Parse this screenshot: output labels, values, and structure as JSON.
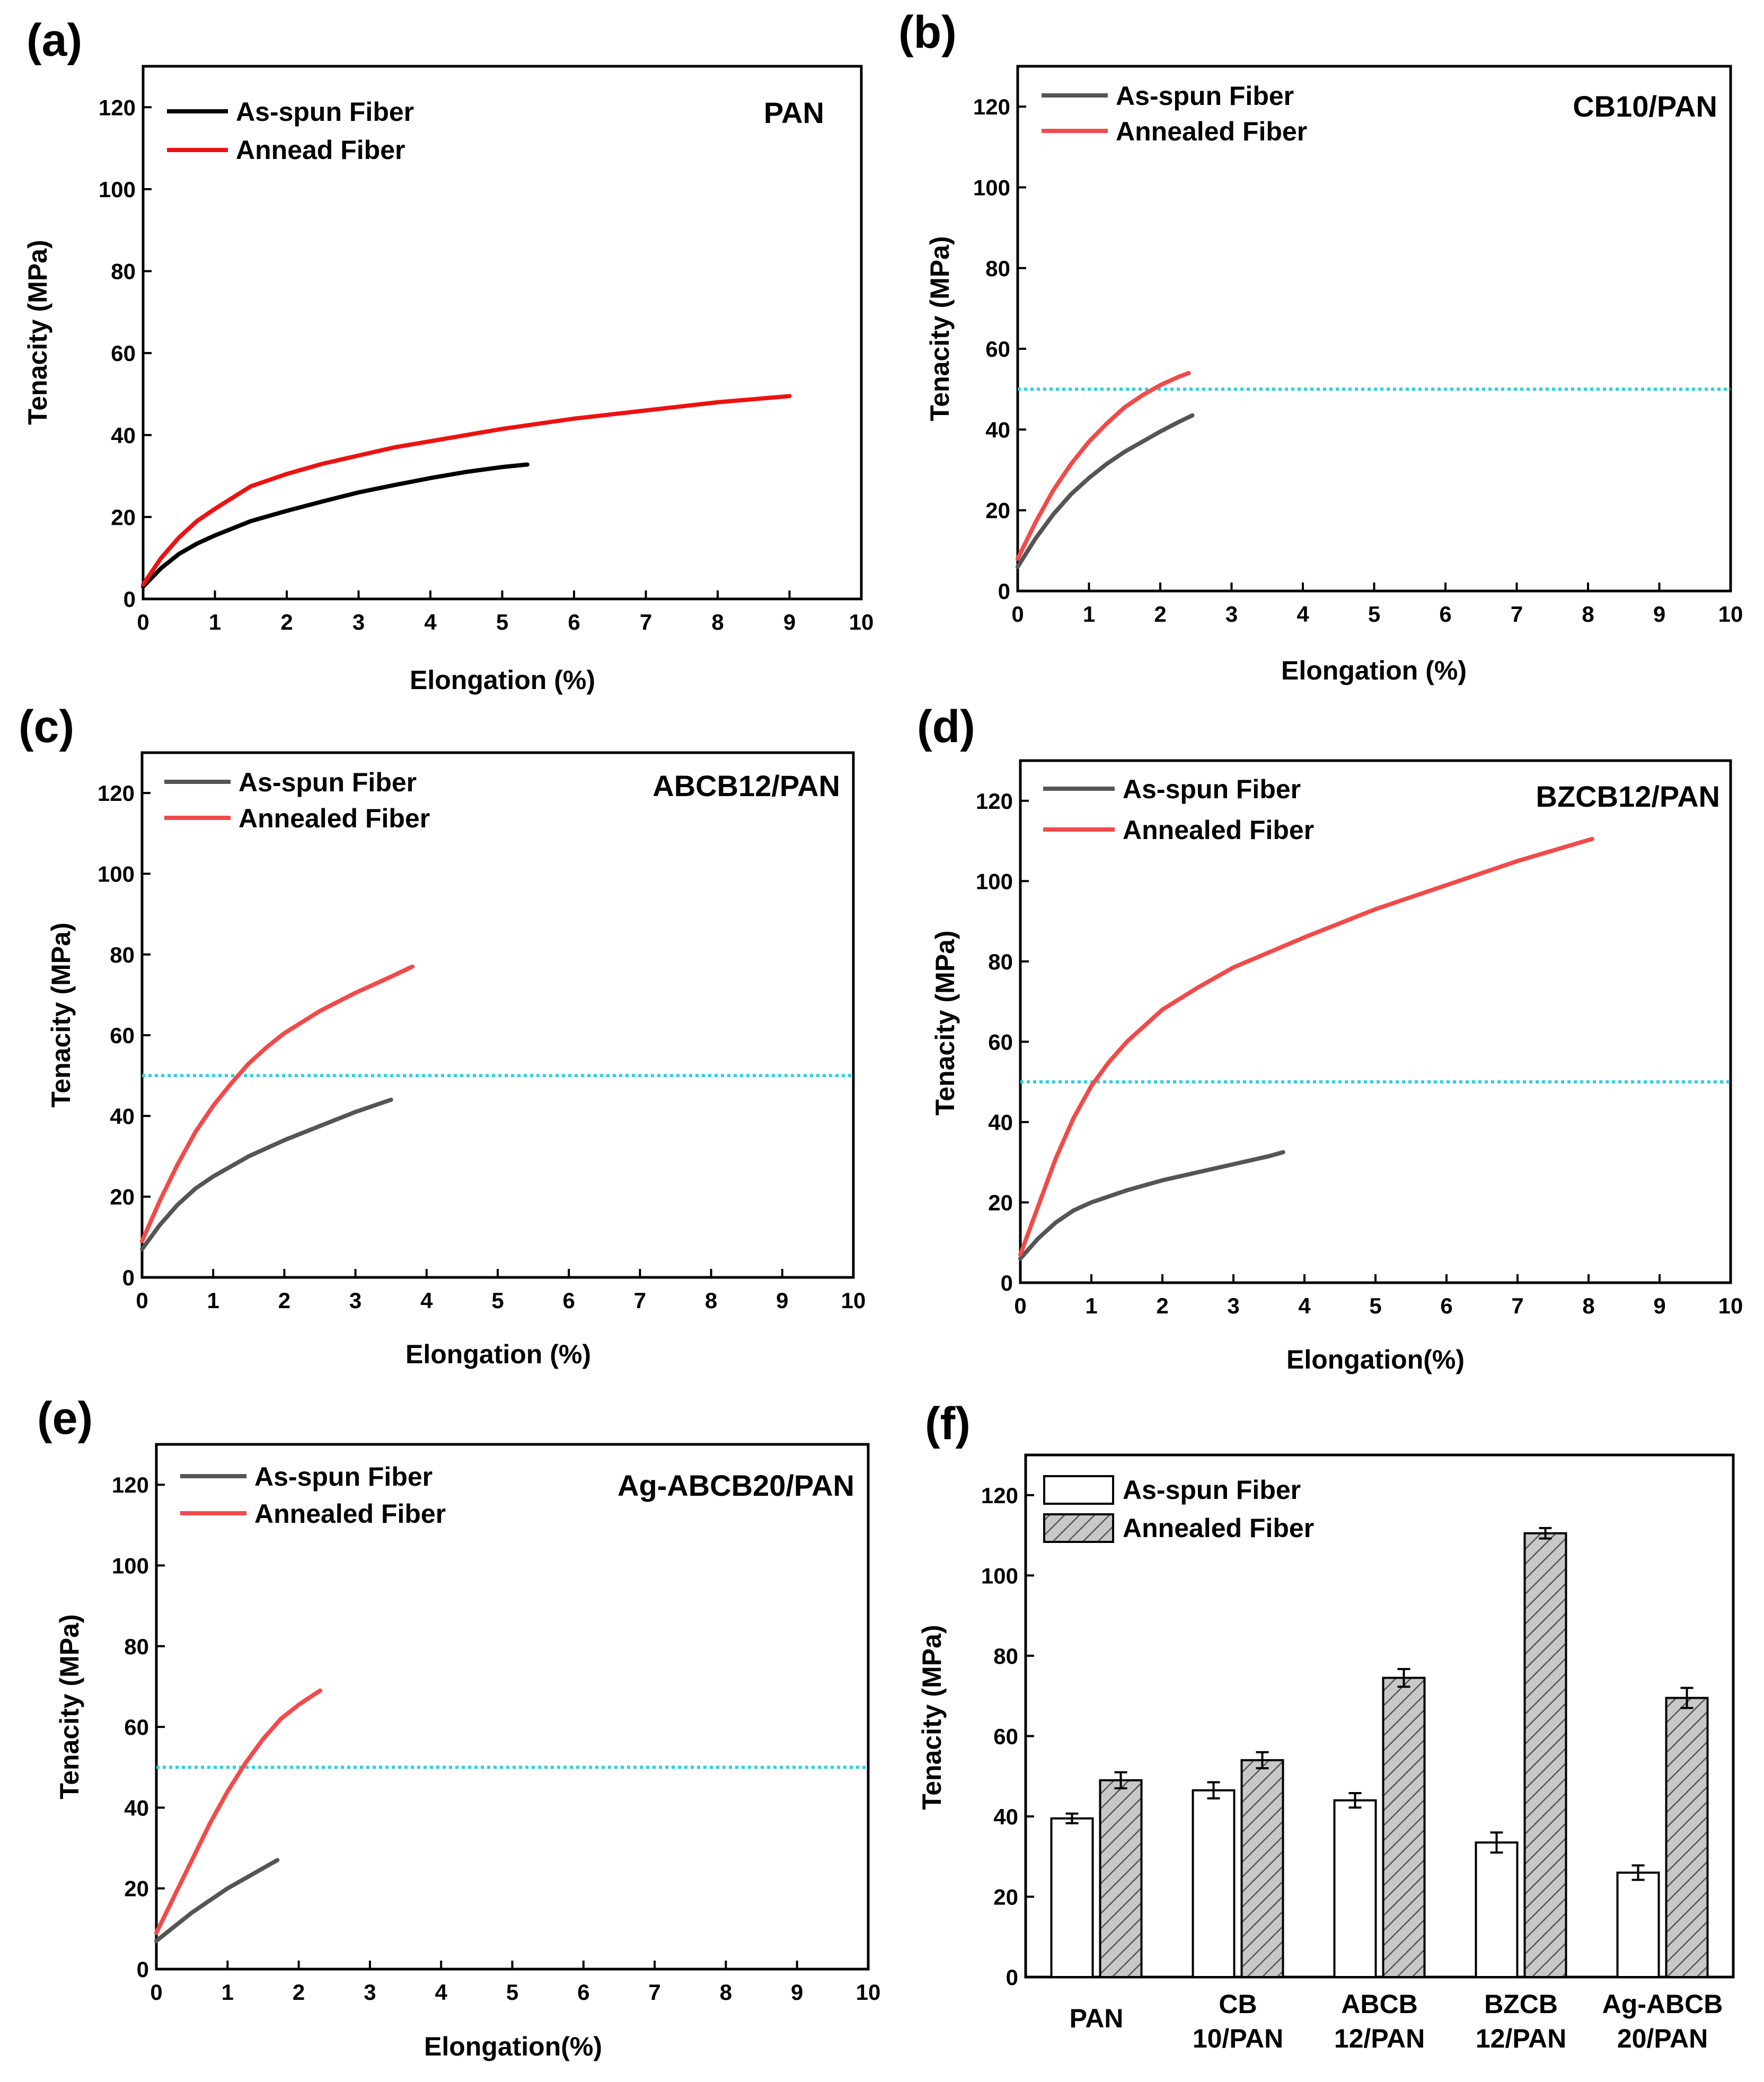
{
  "colors": {
    "as_spun_black": "#000000",
    "as_spun_gray": "#555555",
    "annealed_red_dark": "#ee1111",
    "annealed_red": "#f24a4a",
    "reference_line": "#2ed0df",
    "bar_hatch_fill": "#c8c8c8"
  },
  "chart_data": [
    {
      "id": "a",
      "panel_label": "(a)",
      "type": "line",
      "title": "PAN",
      "xlabel": "Elongation (%)",
      "ylabel": "Tenacity (MPa)",
      "xlim": [
        0,
        10
      ],
      "ylim": [
        0,
        130
      ],
      "xticks": [
        "0",
        "1",
        "2",
        "3",
        "4",
        "5",
        "6",
        "7",
        "8",
        "9",
        "10"
      ],
      "yticks": [
        "0",
        "20",
        "40",
        "60",
        "80",
        "100",
        "120"
      ],
      "reference_line": null,
      "series": [
        {
          "name": "As-spun Fiber",
          "color": "#000000",
          "x": [
            0,
            0.25,
            0.5,
            0.75,
            1,
            1.5,
            2,
            2.5,
            3,
            3.5,
            4,
            4.5,
            5,
            5.35
          ],
          "y": [
            3,
            7.5,
            11,
            13.5,
            15.5,
            19,
            21.5,
            23.8,
            26,
            27.8,
            29.5,
            31,
            32.2,
            32.8
          ]
        },
        {
          "name": "Annead Fiber",
          "color": "#ee1111",
          "x": [
            0,
            0.25,
            0.5,
            0.75,
            1,
            1.5,
            2,
            2.5,
            3,
            3.5,
            4,
            5,
            6,
            7,
            8,
            9
          ],
          "y": [
            3.5,
            10,
            15,
            19,
            22,
            27.5,
            30.5,
            33,
            35,
            37,
            38.5,
            41.5,
            44,
            46,
            48,
            49.5
          ]
        }
      ]
    },
    {
      "id": "b",
      "panel_label": "(b)",
      "type": "line",
      "title": "CB10/PAN",
      "xlabel": "Elongation (%)",
      "ylabel": "Tenacity (MPa)",
      "xlim": [
        0,
        10
      ],
      "ylim": [
        0,
        130
      ],
      "xticks": [
        "0",
        "1",
        "2",
        "3",
        "4",
        "5",
        "6",
        "7",
        "8",
        "9",
        "10"
      ],
      "yticks": [
        "0",
        "20",
        "40",
        "60",
        "80",
        "100",
        "120"
      ],
      "reference_line": 50,
      "series": [
        {
          "name": "As-spun Fiber",
          "color": "#555555",
          "x": [
            0,
            0.25,
            0.5,
            0.75,
            1,
            1.25,
            1.5,
            1.75,
            2,
            2.25,
            2.45
          ],
          "y": [
            6,
            13,
            19,
            24,
            28,
            31.5,
            34.5,
            37,
            39.5,
            41.8,
            43.5
          ]
        },
        {
          "name": "Annealed Fiber",
          "color": "#f24a4a",
          "x": [
            0,
            0.25,
            0.5,
            0.75,
            1,
            1.25,
            1.5,
            1.75,
            2,
            2.25,
            2.4
          ],
          "y": [
            8,
            17,
            25,
            31.5,
            37,
            41.5,
            45.5,
            48.5,
            51,
            53,
            54
          ]
        }
      ]
    },
    {
      "id": "c",
      "panel_label": "(c)",
      "type": "line",
      "title": "ABCB12/PAN",
      "xlabel": "Elongation (%)",
      "ylabel": "Tenacity (MPa)",
      "xlim": [
        0,
        10
      ],
      "ylim": [
        0,
        130
      ],
      "xticks": [
        "0",
        "1",
        "2",
        "3",
        "4",
        "5",
        "6",
        "7",
        "8",
        "9",
        "10"
      ],
      "yticks": [
        "0",
        "20",
        "40",
        "60",
        "80",
        "100",
        "120"
      ],
      "reference_line": 50,
      "series": [
        {
          "name": "As-spun Fiber",
          "color": "#555555",
          "x": [
            0,
            0.25,
            0.5,
            0.75,
            1,
            1.5,
            2,
            2.5,
            3,
            3.5
          ],
          "y": [
            7,
            13,
            18,
            22,
            25,
            30,
            34,
            37.5,
            41,
            44
          ]
        },
        {
          "name": "Annealed Fiber",
          "color": "#f24a4a",
          "x": [
            0,
            0.25,
            0.5,
            0.75,
            1,
            1.25,
            1.5,
            1.75,
            2,
            2.5,
            3,
            3.5,
            3.8
          ],
          "y": [
            9,
            19,
            28,
            36,
            42.5,
            48,
            53,
            57,
            60.5,
            66,
            70.5,
            74.5,
            77
          ]
        }
      ]
    },
    {
      "id": "d",
      "panel_label": "(d)",
      "type": "line",
      "title": "BZCB12/PAN",
      "xlabel": "Elongation(%)",
      "ylabel": "Tenacity (MPa)",
      "xlim": [
        0,
        10
      ],
      "ylim": [
        0,
        130
      ],
      "xticks": [
        "0",
        "1",
        "2",
        "3",
        "4",
        "5",
        "6",
        "7",
        "8",
        "9",
        "10"
      ],
      "yticks": [
        "0",
        "20",
        "40",
        "60",
        "80",
        "100",
        "120"
      ],
      "reference_line": 50,
      "series": [
        {
          "name": "As-spun Fiber",
          "color": "#555555",
          "x": [
            0,
            0.25,
            0.5,
            0.75,
            1,
            1.5,
            2,
            2.5,
            3,
            3.5,
            3.7
          ],
          "y": [
            6,
            11,
            15,
            18,
            20,
            23,
            25.5,
            27.5,
            29.5,
            31.5,
            32.5
          ]
        },
        {
          "name": "Annealed Fiber",
          "color": "#f24a4a",
          "x": [
            0,
            0.25,
            0.5,
            0.75,
            1,
            1.25,
            1.5,
            2,
            2.5,
            3,
            4,
            5,
            6,
            7,
            8.05
          ],
          "y": [
            7,
            19,
            31,
            41,
            49,
            55,
            60,
            68,
            73.5,
            78.5,
            86,
            93,
            99,
            105,
            110.5
          ]
        }
      ]
    },
    {
      "id": "e",
      "panel_label": "(e)",
      "type": "line",
      "title": "Ag-ABCB20/PAN",
      "xlabel": "Elongation(%)",
      "ylabel": "Tenacity (MPa)",
      "xlim": [
        0,
        10
      ],
      "ylim": [
        0,
        130
      ],
      "xticks": [
        "0",
        "1",
        "2",
        "3",
        "4",
        "5",
        "6",
        "7",
        "8",
        "9",
        "10"
      ],
      "yticks": [
        "0",
        "20",
        "40",
        "60",
        "80",
        "100",
        "120"
      ],
      "reference_line": 50,
      "series": [
        {
          "name": "As-spun Fiber",
          "color": "#555555",
          "x": [
            0,
            0.25,
            0.5,
            0.75,
            1,
            1.25,
            1.5,
            1.7
          ],
          "y": [
            7,
            10.5,
            14,
            17,
            20,
            22.5,
            25,
            27
          ]
        },
        {
          "name": "Annealed Fiber",
          "color": "#f24a4a",
          "x": [
            0,
            0.25,
            0.5,
            0.75,
            1,
            1.25,
            1.5,
            1.75,
            2,
            2.3
          ],
          "y": [
            9,
            18,
            27,
            36,
            44,
            51,
            57,
            62,
            65.5,
            69
          ]
        }
      ]
    },
    {
      "id": "f",
      "panel_label": "(f)",
      "type": "bar",
      "title": "",
      "ylabel": "Tenacity (MPa)",
      "ylim": [
        0,
        130
      ],
      "yticks": [
        "0",
        "20",
        "40",
        "60",
        "80",
        "100",
        "120"
      ],
      "categories": [
        {
          "line1": "PAN",
          "line2": ""
        },
        {
          "line1": "CB",
          "line2": "10/PAN"
        },
        {
          "line1": "ABCB",
          "line2": "12/PAN"
        },
        {
          "line1": "BZCB",
          "line2": "12/PAN"
        },
        {
          "line1": "Ag-ABCB",
          "line2": "20/PAN"
        }
      ],
      "series": [
        {
          "name": "As-spun Fiber",
          "pattern": "open",
          "values": [
            39.5,
            46.5,
            44,
            33.5,
            26
          ],
          "errors": [
            1.2,
            2,
            1.8,
            2.5,
            1.8
          ]
        },
        {
          "name": "Annealed Fiber",
          "pattern": "hatched",
          "values": [
            49,
            54,
            74.5,
            110.5,
            69.5
          ],
          "errors": [
            2,
            2,
            2.2,
            1.3,
            2.5
          ]
        }
      ]
    }
  ]
}
